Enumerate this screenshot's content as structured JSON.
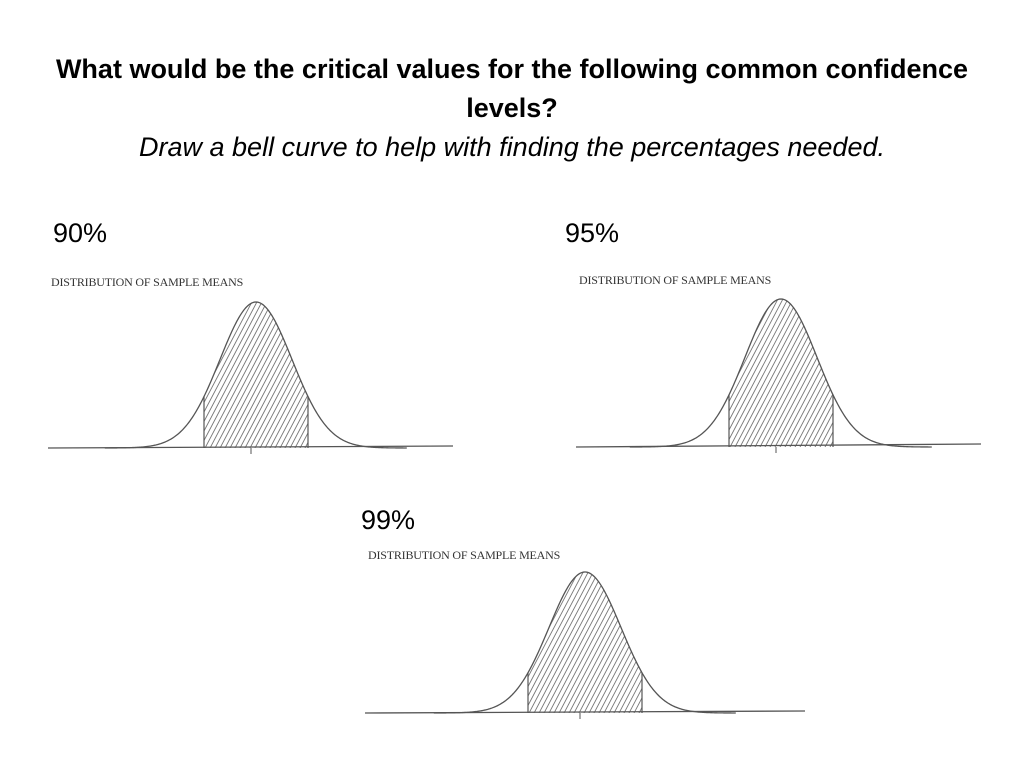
{
  "title": {
    "line1": "What would be the critical values for the following common confidence levels?",
    "line2": "Draw a bell curve to help with finding the percentages needed."
  },
  "diagrams": [
    {
      "label": "90%",
      "caption": "DISTRIBUTION OF SAMPLE MEANS",
      "shaded_fraction": 0.9
    },
    {
      "label": "95%",
      "caption": "DISTRIBUTION OF SAMPLE MEANS",
      "shaded_fraction": 0.95
    },
    {
      "label": "99%",
      "caption": "DISTRIBUTION OF SAMPLE MEANS",
      "shaded_fraction": 0.99
    }
  ],
  "colors": {
    "ink": "#555555",
    "hatch": "#777777"
  }
}
